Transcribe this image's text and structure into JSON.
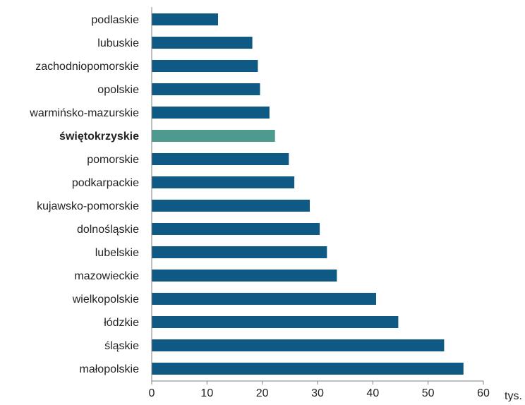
{
  "chart_data": {
    "type": "bar",
    "orientation": "horizontal",
    "categories": [
      "podlaskie",
      "lubuskie",
      "zachodniopomorskie",
      "opolskie",
      "warmińsko-mazurskie",
      "świętokrzyskie",
      "pomorskie",
      "podkarpackie",
      "kujawsko-pomorskie",
      "dolnośląskie",
      "lubelskie",
      "mazowieckie",
      "wielkopolskie",
      "łódzkie",
      "śląskie",
      "małopolskie"
    ],
    "values": [
      12.0,
      18.2,
      19.2,
      19.6,
      21.3,
      22.3,
      24.8,
      25.8,
      28.6,
      30.4,
      31.7,
      33.5,
      40.6,
      44.6,
      52.9,
      56.4
    ],
    "highlight_category": "świętokrzyskie",
    "xlim": [
      0,
      60
    ],
    "xticks": [
      0,
      10,
      20,
      30,
      40,
      50,
      60
    ],
    "x_unit_label": "tys.",
    "title": "",
    "xlabel": "",
    "ylabel": "",
    "grid": false,
    "colors": {
      "bar": "#0E5A84",
      "highlight": "#4E9A8E",
      "axis": "#808080",
      "text": "#222222"
    }
  }
}
